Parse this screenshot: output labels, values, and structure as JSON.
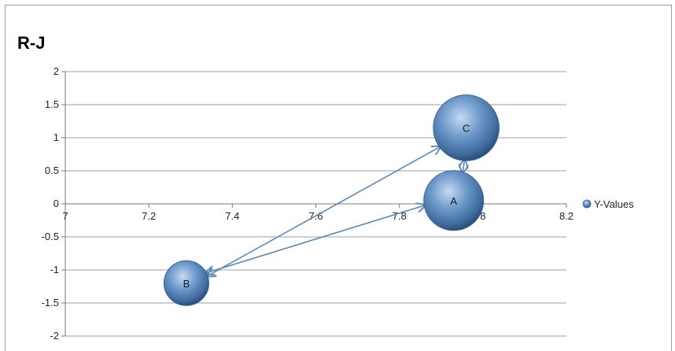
{
  "chart_data": {
    "type": "scatter",
    "title": "R-J",
    "xlabel": "",
    "ylabel": "",
    "xlim": [
      7,
      8.2
    ],
    "ylim": [
      -2,
      2
    ],
    "x_ticks": [
      "7",
      "7.2",
      "7.4",
      "7.6",
      "7.8",
      "8",
      "8.2"
    ],
    "y_ticks": [
      "2",
      "1.5",
      "1",
      "0.5",
      "0",
      "-0.5",
      "-1",
      "-1.5",
      "-2"
    ],
    "grid": "horizontal",
    "legend_position": "right",
    "series": [
      {
        "name": "Y-Values",
        "color": "#5b87b8",
        "points": [
          {
            "label": "A",
            "x": 7.93,
            "y": 0.05,
            "size": 1.0
          },
          {
            "label": "B",
            "x": 7.29,
            "y": -1.2,
            "size": 0.75
          },
          {
            "label": "C",
            "x": 7.96,
            "y": 1.15,
            "size": 1.1
          }
        ]
      }
    ],
    "arrows": [
      {
        "from": "C",
        "to": "B"
      },
      {
        "from": "B",
        "to": "C"
      },
      {
        "from": "A",
        "to": "B"
      },
      {
        "from": "B",
        "to": "A"
      },
      {
        "from": "C",
        "to": "A"
      },
      {
        "from": "A",
        "to": "C"
      }
    ]
  }
}
